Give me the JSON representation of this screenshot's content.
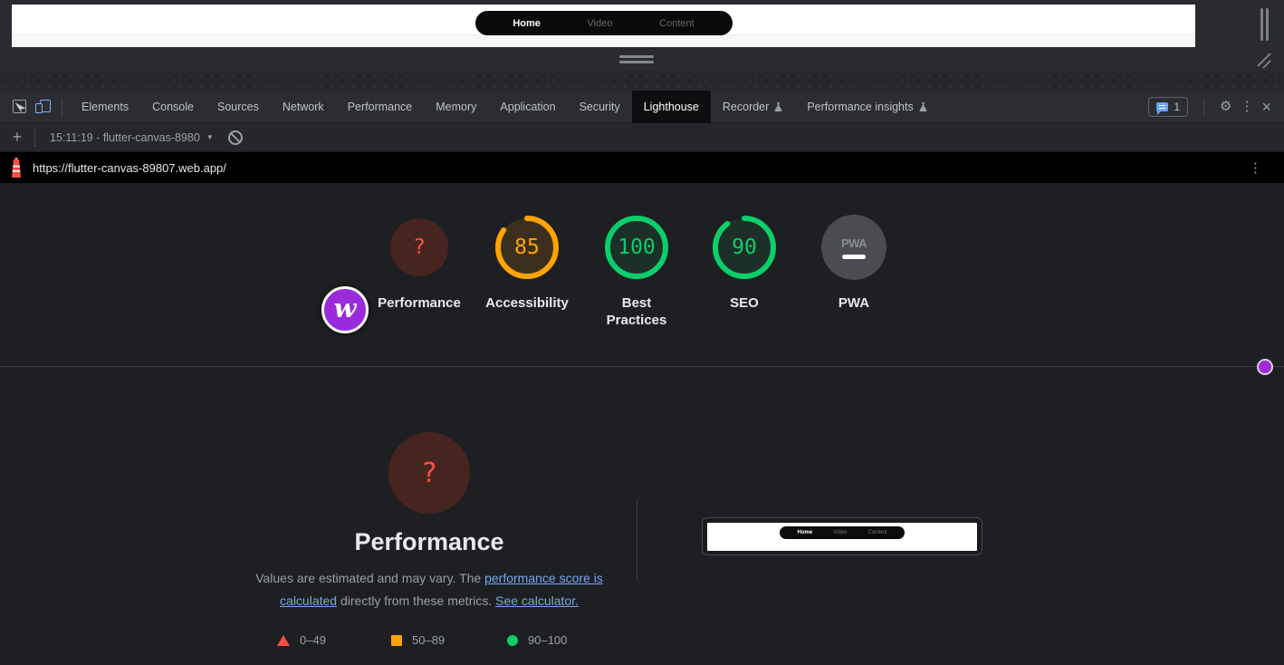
{
  "device": {
    "nav_items": [
      {
        "label": "Home",
        "active": true
      },
      {
        "label": "Video",
        "active": false
      },
      {
        "label": "Content",
        "active": false
      }
    ]
  },
  "devtools": {
    "tabs": [
      {
        "label": "Elements"
      },
      {
        "label": "Console"
      },
      {
        "label": "Sources"
      },
      {
        "label": "Network"
      },
      {
        "label": "Performance"
      },
      {
        "label": "Memory"
      },
      {
        "label": "Application"
      },
      {
        "label": "Security"
      },
      {
        "label": "Lighthouse",
        "active": true
      },
      {
        "label": "Recorder",
        "flask": true
      },
      {
        "label": "Performance insights",
        "flask": true
      }
    ],
    "issues_count": "1"
  },
  "lighthouse_toolbar": {
    "new_run_label": "+",
    "run_label": "15:11:19 - flutter-canvas-8980"
  },
  "url_bar": {
    "url": "https://flutter-canvas-89807.web.app/"
  },
  "report": {
    "scores": [
      {
        "label": "Performance",
        "display": "?",
        "state": "na"
      },
      {
        "label": "Accessibility",
        "display": "85",
        "score": 85,
        "state": "average"
      },
      {
        "label": "Best Practices",
        "display": "100",
        "score": 100,
        "state": "pass"
      },
      {
        "label": "SEO",
        "display": "90",
        "score": 90,
        "state": "pass"
      },
      {
        "label": "PWA",
        "badge": "PWA",
        "state": "pwa"
      }
    ],
    "performance_section": {
      "gauge_value": "?",
      "title": "Performance",
      "desc_1": "Values are estimated and may vary. The ",
      "link_1": "performance score is calculated",
      "desc_2": " directly from these metrics. ",
      "link_2": "See calculator.",
      "legend": [
        {
          "shape": "triangle",
          "range": "0–49"
        },
        {
          "shape": "square",
          "range": "50–89"
        },
        {
          "shape": "circle",
          "range": "90–100"
        }
      ]
    }
  },
  "colors": {
    "pass": "#0cce6b",
    "average": "#ffa400",
    "fail": "#ff4e42",
    "pass_fill": "rgba(12,206,107,0.09)",
    "average_fill": "rgba(255,164,0,0.13)",
    "na_fill": "#46241f",
    "link": "#77a7f2",
    "logo_purple": "#9a2bdb",
    "marker_purple": "#a429d8"
  }
}
